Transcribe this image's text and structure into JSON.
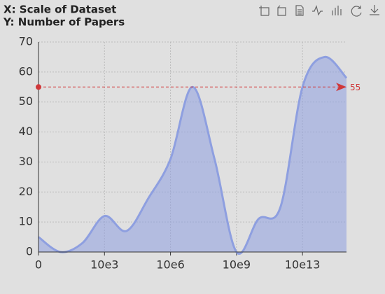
{
  "chart_data": {
    "type": "line",
    "smooth": true,
    "area": true,
    "title_lines": [
      "X: Scale of Dataset",
      "Y: Number of Papers"
    ],
    "categories": [
      "0",
      null,
      null,
      "10e3",
      null,
      null,
      "10e6",
      null,
      null,
      "10e9",
      null,
      null,
      "10e13",
      null,
      null
    ],
    "series": [
      {
        "color": "#8e9fe0",
        "values": [
          5,
          0,
          3,
          12,
          7,
          18,
          31,
          55,
          31,
          0,
          11,
          15,
          55,
          65,
          58
        ]
      }
    ],
    "ylim": [
      0,
      70
    ],
    "yticks": [
      0,
      10,
      20,
      30,
      40,
      50,
      60,
      70
    ],
    "grid": true,
    "mark_line": {
      "value": 55,
      "color": "#d0383a"
    }
  }
}
